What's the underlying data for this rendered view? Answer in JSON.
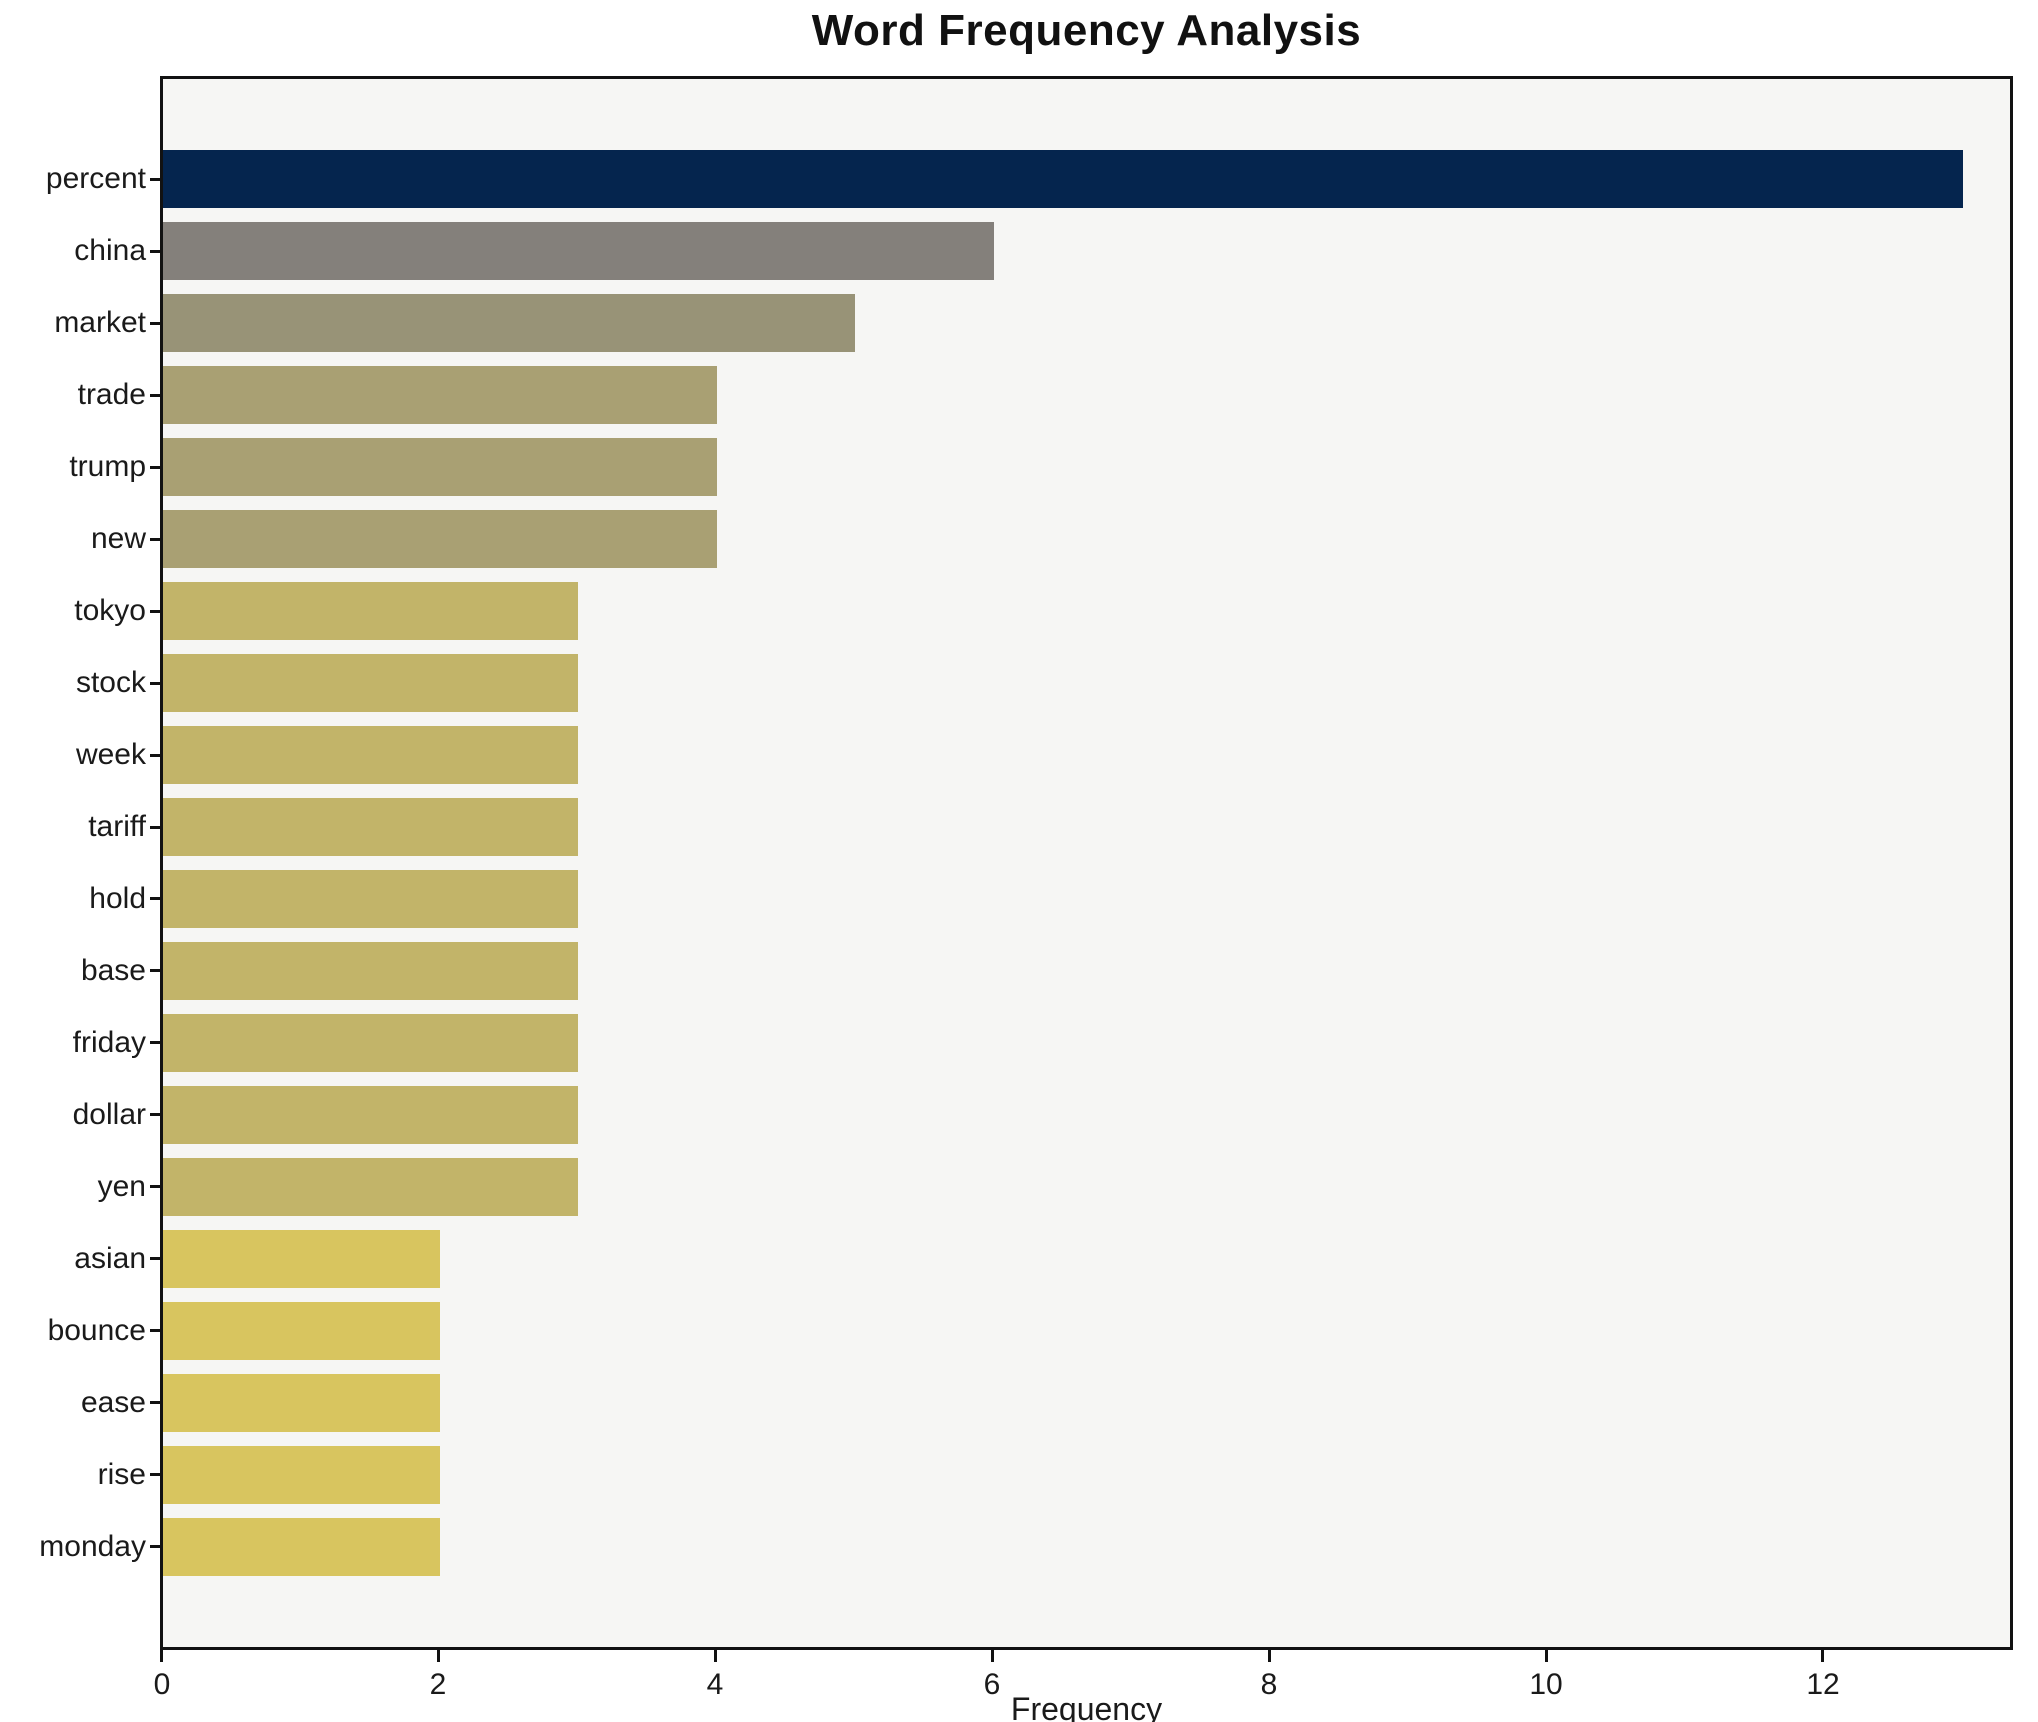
{
  "title": "Word Frequency Analysis",
  "xlabel": "Frequency",
  "chart_data": {
    "type": "bar",
    "orientation": "horizontal",
    "title": "Word Frequency Analysis",
    "xlabel": "Frequency",
    "ylabel": "",
    "categories": [
      "percent",
      "china",
      "market",
      "trade",
      "trump",
      "new",
      "tokyo",
      "stock",
      "week",
      "tariff",
      "hold",
      "base",
      "friday",
      "dollar",
      "yen",
      "asian",
      "bounce",
      "ease",
      "rise",
      "monday"
    ],
    "values": [
      13,
      6,
      5,
      4,
      4,
      4,
      3,
      3,
      3,
      3,
      3,
      3,
      3,
      3,
      3,
      2,
      2,
      2,
      2,
      2
    ],
    "bar_colors": [
      "#05254e",
      "#84807b",
      "#989377",
      "#a9a073",
      "#a9a073",
      "#a9a073",
      "#c2b469",
      "#c2b469",
      "#c2b469",
      "#c2b469",
      "#c2b469",
      "#c2b469",
      "#c2b469",
      "#c2b469",
      "#c2b469",
      "#d8c55f",
      "#d8c55f",
      "#d8c55f",
      "#d8c55f",
      "#d8c55f"
    ],
    "xticks": [
      0,
      2,
      4,
      6,
      8,
      10,
      12
    ],
    "xlim": [
      0,
      13.34
    ],
    "grid": false,
    "legend": null,
    "plot_background": "#f6f6f4",
    "figure_background": "#ffffff",
    "spine_color": "#121212",
    "text_color": "#1a1a1a"
  }
}
